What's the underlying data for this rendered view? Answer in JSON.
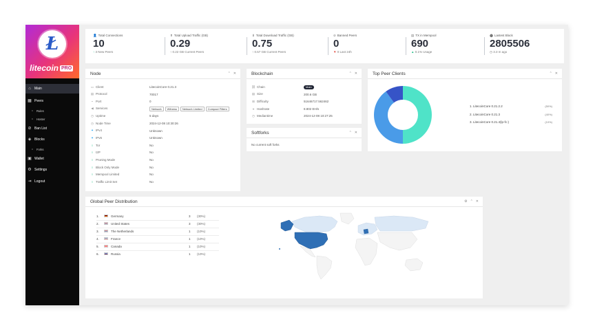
{
  "brand": {
    "name": "litecoin",
    "edition": "PRO",
    "logo_letter": "Ł"
  },
  "nav": [
    {
      "label": "Main",
      "icon": "home-icon",
      "glyph": "⌂",
      "sub": false,
      "active": true
    },
    {
      "label": "Peers",
      "icon": "peers-icon",
      "glyph": "▦",
      "sub": false,
      "active": false
    },
    {
      "label": "Rules",
      "icon": "rules-icon",
      "glyph": "•",
      "sub": true,
      "active": false
    },
    {
      "label": "Hoster",
      "icon": "hoster-icon",
      "glyph": "•",
      "sub": true,
      "active": false
    },
    {
      "label": "Ban List",
      "icon": "ban-icon",
      "glyph": "⊘",
      "sub": false,
      "active": false
    },
    {
      "label": "Blocks",
      "icon": "blocks-icon",
      "glyph": "◈",
      "sub": false,
      "active": false
    },
    {
      "label": "Forks",
      "icon": "forks-icon",
      "glyph": "•",
      "sub": true,
      "active": false
    },
    {
      "label": "Wallet",
      "icon": "wallet-icon",
      "glyph": "▣",
      "sub": false,
      "active": false
    },
    {
      "label": "Settings",
      "icon": "gear-icon",
      "glyph": "⚙",
      "sub": false,
      "active": false
    },
    {
      "label": "Logout",
      "icon": "logout-icon",
      "glyph": "⇥",
      "sub": false,
      "active": false
    }
  ],
  "stats": [
    {
      "label": "Total Connections",
      "icon": "user-icon",
      "glyph": "👤",
      "value": "10",
      "sub_prefix": "↑",
      "sub_dir": "up",
      "sub": "3 New Peers"
    },
    {
      "label": "Total Upload Traffic (GB)",
      "icon": "upload-icon",
      "glyph": "⬆",
      "value": "0.29",
      "sub_prefix": "↑",
      "sub_dir": "neutral",
      "sub": "0.22 GB Current Peers"
    },
    {
      "label": "Total Download Traffic (GB)",
      "icon": "download-icon",
      "glyph": "⬇",
      "value": "0.75",
      "sub_prefix": "↑",
      "sub_dir": "neutral",
      "sub": "0.57 GB Current Peers"
    },
    {
      "label": "Banned Peers",
      "icon": "ban-icon",
      "glyph": "⊘",
      "value": "0",
      "sub_prefix": "▼",
      "sub_dir": "down",
      "sub": "0 Last 24h"
    },
    {
      "label": "TX in Mempool",
      "icon": "tx-icon",
      "glyph": "▤",
      "value": "690",
      "sub_prefix": "▲",
      "sub_dir": "up",
      "sub": "0.1% Usage"
    },
    {
      "label": "Lastest Block",
      "icon": "block-icon",
      "glyph": "⬤",
      "value": "2805506",
      "sub_prefix": "◷",
      "sub_dir": "neutral",
      "sub": "3.3 m ago"
    }
  ],
  "node": {
    "title": "Node",
    "rows": [
      {
        "key": "Client",
        "icon": "client-icon",
        "glyph": "▭",
        "icon_style": "",
        "value": "LitecoinCore 0.21.3"
      },
      {
        "key": "Protocol",
        "icon": "protocol-icon",
        "glyph": "▤",
        "icon_style": "",
        "value": "70017"
      },
      {
        "key": "Port",
        "icon": "port-icon",
        "glyph": "⌁",
        "icon_style": "",
        "value": "0"
      },
      {
        "key": "Services",
        "icon": "services-icon",
        "glyph": "◀",
        "icon_style": "",
        "value": "",
        "tags": [
          "Network",
          "Witness",
          "Network Limited",
          "Compact Filters"
        ]
      },
      {
        "key": "Uptime",
        "icon": "uptime-icon",
        "glyph": "◷",
        "icon_style": "",
        "value": "5 days"
      },
      {
        "key": "Node Time",
        "icon": "clock-icon",
        "glyph": "◷",
        "icon_style": "",
        "value": "2024-12-08 10:30:26"
      },
      {
        "key": "IPv4",
        "icon": "twitter-icon",
        "glyph": "✦",
        "icon_style": "tw",
        "value": "Unknown"
      },
      {
        "key": "IPv6",
        "icon": "twitter-icon",
        "glyph": "✦",
        "icon_style": "tw",
        "value": "Unknown"
      },
      {
        "key": "Tor",
        "icon": "tor-icon",
        "glyph": "○",
        "icon_style": "ok",
        "value": "No"
      },
      {
        "key": "I2P",
        "icon": "i2p-icon",
        "glyph": "○",
        "icon_style": "ok",
        "value": "No"
      },
      {
        "key": "Pruning Mode",
        "icon": "pruning-icon",
        "glyph": "○",
        "icon_style": "ok",
        "value": "No"
      },
      {
        "key": "Block Only Mode",
        "icon": "block-only-icon",
        "glyph": "○",
        "icon_style": "ok",
        "value": "No"
      },
      {
        "key": "Mempool Limited",
        "icon": "mempool-icon",
        "glyph": "○",
        "icon_style": "ok",
        "value": "No"
      },
      {
        "key": "Traffic Limit Set",
        "icon": "traffic-icon",
        "glyph": "○",
        "icon_style": "ok",
        "value": "No"
      }
    ]
  },
  "blockchain": {
    "title": "Blockchain",
    "rows": [
      {
        "key": "Chain",
        "icon": "chain-icon",
        "glyph": "⛓",
        "value": "",
        "pill": "Main"
      },
      {
        "key": "Size",
        "icon": "size-icon",
        "glyph": "▤",
        "value": "200.6 GB"
      },
      {
        "key": "Difficulty",
        "icon": "difficulty-icon",
        "glyph": "⊞",
        "value": "51646717.562462"
      },
      {
        "key": "Hashrate",
        "icon": "hashrate-icon",
        "glyph": "⌖",
        "value": "8.802 EH/s"
      },
      {
        "key": "Mediantime",
        "icon": "mediantime-icon",
        "glyph": "◷",
        "value": "2024-12-08 10:27:25"
      }
    ]
  },
  "softforks": {
    "title": "Softforks",
    "empty": "No current soft forks"
  },
  "top_clients": {
    "title": "Top Peer Clients",
    "items": [
      {
        "label": "1. LitecoinCore 0.21.2.2",
        "pct": "(50%)"
      },
      {
        "label": "2. LitecoinCore 0.21.3",
        "pct": "(40%)"
      },
      {
        "label": "3. LitecoinCore 0.21.4(lp-fc-)",
        "pct": "(10%)"
      }
    ]
  },
  "chart_data": {
    "type": "pie",
    "categories": [
      "LitecoinCore 0.21.2.2",
      "LitecoinCore 0.21.3",
      "LitecoinCore 0.21.4(lp-fc-)"
    ],
    "values": [
      50,
      40,
      10
    ],
    "colors": [
      "#4fe3c8",
      "#4a9be8",
      "#3654c7"
    ],
    "donut": true,
    "title": "Top Peer Clients"
  },
  "geo": {
    "title": "Global Peer Distribution",
    "rows": [
      {
        "index": "1.",
        "country": "Germany",
        "count": "3",
        "pct": "(30%)",
        "flag": [
          "#000000",
          "#dd0000",
          "#ffce00"
        ]
      },
      {
        "index": "2.",
        "country": "United States",
        "count": "3",
        "pct": "(30%)",
        "flag": [
          "#b22234",
          "#ffffff",
          "#3c3b6e"
        ]
      },
      {
        "index": "3.",
        "country": "The Netherlands",
        "count": "1",
        "pct": "(10%)",
        "flag": [
          "#ae1c28",
          "#ffffff",
          "#21468b"
        ]
      },
      {
        "index": "4.",
        "country": "France",
        "count": "1",
        "pct": "(10%)",
        "flag": [
          "#0055a4",
          "#ffffff",
          "#ef4135"
        ]
      },
      {
        "index": "5.",
        "country": "Canada",
        "count": "1",
        "pct": "(10%)",
        "flag": [
          "#ff0000",
          "#ffffff",
          "#ff0000"
        ]
      },
      {
        "index": "6.",
        "country": "Russia",
        "count": "1",
        "pct": "(10%)",
        "flag": [
          "#ffffff",
          "#0039a6",
          "#d52b1e"
        ]
      }
    ]
  },
  "colors": {
    "accent_pink": "#e8347a",
    "up": "#2ec28f",
    "down": "#e0463a",
    "map_dark": "#2f6fb5",
    "map_light": "#dbe8f6",
    "map_base": "#f4f4f4"
  }
}
